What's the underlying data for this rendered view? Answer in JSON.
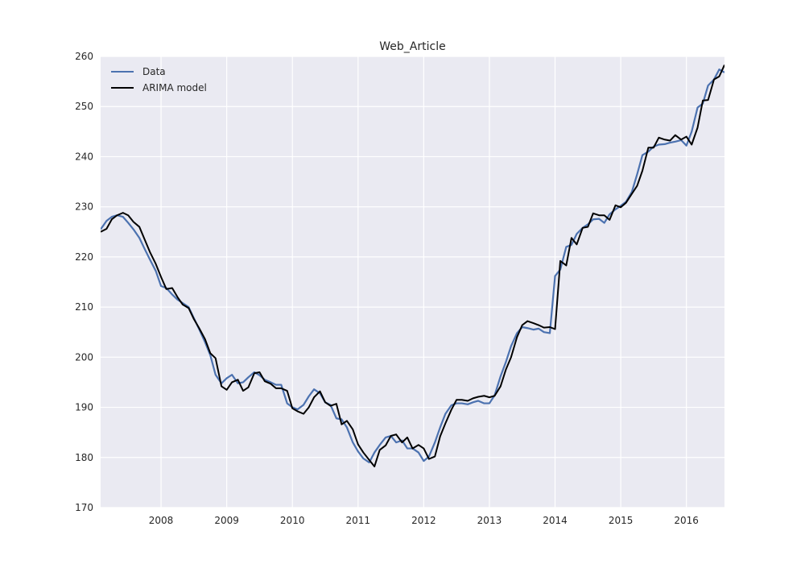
{
  "chart_data": {
    "type": "line",
    "title": "Web_Article",
    "xlabel": "",
    "ylabel": "",
    "xlim": [
      2007.08,
      2016.58
    ],
    "ylim": [
      170,
      260
    ],
    "x_tick_labels": [
      "2008",
      "2009",
      "2010",
      "2011",
      "2012",
      "2013",
      "2014",
      "2015",
      "2016"
    ],
    "y_tick_labels": [
      "170",
      "180",
      "190",
      "200",
      "210",
      "220",
      "230",
      "240",
      "250",
      "260"
    ],
    "grid": true,
    "legend_position": "top-left",
    "series": [
      {
        "name": "Data",
        "color": "#4c72b0",
        "points": [
          [
            2007.08,
            225.5
          ],
          [
            2007.17,
            227.2
          ],
          [
            2007.25,
            228.0
          ],
          [
            2007.33,
            228.3
          ],
          [
            2007.42,
            228.0
          ],
          [
            2007.5,
            226.8
          ],
          [
            2007.58,
            225.5
          ],
          [
            2007.67,
            223.8
          ],
          [
            2007.75,
            221.6
          ],
          [
            2007.83,
            219.5
          ],
          [
            2007.92,
            217.2
          ],
          [
            2008.0,
            214.2
          ],
          [
            2008.08,
            213.8
          ],
          [
            2008.17,
            212.5
          ],
          [
            2008.25,
            211.5
          ],
          [
            2008.33,
            210.8
          ],
          [
            2008.42,
            210.0
          ],
          [
            2008.5,
            207.8
          ],
          [
            2008.58,
            205.6
          ],
          [
            2008.67,
            203.0
          ],
          [
            2008.75,
            200.4
          ],
          [
            2008.83,
            196.5
          ],
          [
            2008.92,
            194.8
          ],
          [
            2009.0,
            195.8
          ],
          [
            2009.08,
            196.5
          ],
          [
            2009.17,
            194.8
          ],
          [
            2009.25,
            195.0
          ],
          [
            2009.33,
            196.0
          ],
          [
            2009.42,
            197.0
          ],
          [
            2009.5,
            196.4
          ],
          [
            2009.58,
            195.5
          ],
          [
            2009.67,
            195.0
          ],
          [
            2009.75,
            194.5
          ],
          [
            2009.83,
            194.5
          ],
          [
            2009.92,
            190.8
          ],
          [
            2010.0,
            190.0
          ],
          [
            2010.08,
            189.6
          ],
          [
            2010.17,
            190.5
          ],
          [
            2010.25,
            192.2
          ],
          [
            2010.33,
            193.6
          ],
          [
            2010.42,
            192.8
          ],
          [
            2010.5,
            191.0
          ],
          [
            2010.58,
            190.5
          ],
          [
            2010.67,
            187.8
          ],
          [
            2010.75,
            187.6
          ],
          [
            2010.83,
            186.0
          ],
          [
            2010.92,
            183.0
          ],
          [
            2011.0,
            181.2
          ],
          [
            2011.08,
            179.8
          ],
          [
            2011.17,
            179.0
          ],
          [
            2011.25,
            181.0
          ],
          [
            2011.33,
            182.5
          ],
          [
            2011.42,
            184.0
          ],
          [
            2011.5,
            184.3
          ],
          [
            2011.58,
            183.0
          ],
          [
            2011.67,
            183.4
          ],
          [
            2011.75,
            181.8
          ],
          [
            2011.83,
            181.8
          ],
          [
            2011.92,
            181.0
          ],
          [
            2012.0,
            179.3
          ],
          [
            2012.08,
            180.2
          ],
          [
            2012.17,
            183.0
          ],
          [
            2012.25,
            186.0
          ],
          [
            2012.33,
            188.7
          ],
          [
            2012.42,
            190.4
          ],
          [
            2012.5,
            190.8
          ],
          [
            2012.58,
            190.8
          ],
          [
            2012.67,
            190.6
          ],
          [
            2012.75,
            191.0
          ],
          [
            2012.83,
            191.3
          ],
          [
            2012.92,
            190.8
          ],
          [
            2013.0,
            190.8
          ],
          [
            2013.08,
            192.4
          ],
          [
            2013.17,
            196.2
          ],
          [
            2013.25,
            199.0
          ],
          [
            2013.33,
            202.2
          ],
          [
            2013.42,
            204.8
          ],
          [
            2013.5,
            206.0
          ],
          [
            2013.58,
            205.8
          ],
          [
            2013.67,
            205.5
          ],
          [
            2013.75,
            205.7
          ],
          [
            2013.83,
            205.0
          ],
          [
            2013.92,
            204.8
          ],
          [
            2014.0,
            216.2
          ],
          [
            2014.08,
            217.5
          ],
          [
            2014.17,
            222.0
          ],
          [
            2014.25,
            222.4
          ],
          [
            2014.33,
            224.6
          ],
          [
            2014.42,
            225.8
          ],
          [
            2014.5,
            226.5
          ],
          [
            2014.58,
            227.5
          ],
          [
            2014.67,
            227.6
          ],
          [
            2014.75,
            226.8
          ],
          [
            2014.83,
            228.5
          ],
          [
            2014.92,
            229.5
          ],
          [
            2015.0,
            230.2
          ],
          [
            2015.08,
            231.0
          ],
          [
            2015.17,
            233.0
          ],
          [
            2015.25,
            236.5
          ],
          [
            2015.33,
            240.3
          ],
          [
            2015.42,
            241.0
          ],
          [
            2015.5,
            242.0
          ],
          [
            2015.58,
            242.4
          ],
          [
            2015.67,
            242.5
          ],
          [
            2015.75,
            242.8
          ],
          [
            2015.83,
            243.0
          ],
          [
            2015.92,
            243.3
          ],
          [
            2016.0,
            242.2
          ],
          [
            2016.08,
            245.0
          ],
          [
            2016.17,
            249.8
          ],
          [
            2016.25,
            250.6
          ],
          [
            2016.33,
            254.2
          ],
          [
            2016.42,
            255.4
          ],
          [
            2016.5,
            257.4
          ],
          [
            2016.58,
            256.8
          ]
        ]
      },
      {
        "name": "ARIMA model",
        "color": "#000000",
        "points": [
          [
            2007.08,
            225.0
          ],
          [
            2007.17,
            225.6
          ],
          [
            2007.25,
            227.5
          ],
          [
            2007.33,
            228.3
          ],
          [
            2007.42,
            228.8
          ],
          [
            2007.5,
            228.3
          ],
          [
            2007.58,
            227.0
          ],
          [
            2007.67,
            226.0
          ],
          [
            2007.75,
            223.5
          ],
          [
            2007.83,
            221.0
          ],
          [
            2007.92,
            218.6
          ],
          [
            2008.0,
            216.0
          ],
          [
            2008.08,
            213.6
          ],
          [
            2008.17,
            213.8
          ],
          [
            2008.25,
            212.0
          ],
          [
            2008.33,
            210.5
          ],
          [
            2008.42,
            209.8
          ],
          [
            2008.5,
            207.6
          ],
          [
            2008.58,
            205.8
          ],
          [
            2008.67,
            203.6
          ],
          [
            2008.75,
            200.8
          ],
          [
            2008.83,
            199.8
          ],
          [
            2008.92,
            194.2
          ],
          [
            2009.0,
            193.5
          ],
          [
            2009.08,
            195.0
          ],
          [
            2009.17,
            195.5
          ],
          [
            2009.25,
            193.3
          ],
          [
            2009.33,
            194.0
          ],
          [
            2009.42,
            196.8
          ],
          [
            2009.5,
            197.0
          ],
          [
            2009.58,
            195.2
          ],
          [
            2009.67,
            194.7
          ],
          [
            2009.75,
            193.8
          ],
          [
            2009.83,
            193.8
          ],
          [
            2009.92,
            193.3
          ],
          [
            2010.0,
            189.8
          ],
          [
            2010.08,
            189.2
          ],
          [
            2010.17,
            188.7
          ],
          [
            2010.25,
            190.0
          ],
          [
            2010.33,
            192.0
          ],
          [
            2010.42,
            193.2
          ],
          [
            2010.5,
            191.0
          ],
          [
            2010.58,
            190.3
          ],
          [
            2010.67,
            190.7
          ],
          [
            2010.75,
            186.6
          ],
          [
            2010.83,
            187.3
          ],
          [
            2010.92,
            185.6
          ],
          [
            2011.0,
            182.6
          ],
          [
            2011.08,
            181.0
          ],
          [
            2011.17,
            179.5
          ],
          [
            2011.25,
            178.2
          ],
          [
            2011.33,
            181.5
          ],
          [
            2011.42,
            182.4
          ],
          [
            2011.5,
            184.3
          ],
          [
            2011.58,
            184.6
          ],
          [
            2011.67,
            183.0
          ],
          [
            2011.75,
            184.0
          ],
          [
            2011.83,
            181.8
          ],
          [
            2011.92,
            182.5
          ],
          [
            2012.0,
            181.8
          ],
          [
            2012.08,
            179.7
          ],
          [
            2012.17,
            180.2
          ],
          [
            2012.25,
            184.2
          ],
          [
            2012.33,
            186.8
          ],
          [
            2012.42,
            189.5
          ],
          [
            2012.5,
            191.5
          ],
          [
            2012.58,
            191.5
          ],
          [
            2012.67,
            191.3
          ],
          [
            2012.75,
            191.8
          ],
          [
            2012.83,
            192.1
          ],
          [
            2012.92,
            192.3
          ],
          [
            2013.0,
            192.0
          ],
          [
            2013.08,
            192.3
          ],
          [
            2013.17,
            194.2
          ],
          [
            2013.25,
            197.5
          ],
          [
            2013.33,
            200.0
          ],
          [
            2013.42,
            204.0
          ],
          [
            2013.5,
            206.4
          ],
          [
            2013.58,
            207.2
          ],
          [
            2013.67,
            206.8
          ],
          [
            2013.75,
            206.4
          ],
          [
            2013.83,
            205.9
          ],
          [
            2013.92,
            206.0
          ],
          [
            2014.0,
            205.6
          ],
          [
            2014.08,
            219.2
          ],
          [
            2014.17,
            218.3
          ],
          [
            2014.25,
            223.8
          ],
          [
            2014.33,
            222.5
          ],
          [
            2014.42,
            225.8
          ],
          [
            2014.5,
            226.0
          ],
          [
            2014.58,
            228.7
          ],
          [
            2014.67,
            228.3
          ],
          [
            2014.75,
            228.3
          ],
          [
            2014.83,
            227.4
          ],
          [
            2014.92,
            230.3
          ],
          [
            2015.0,
            229.9
          ],
          [
            2015.08,
            230.8
          ],
          [
            2015.17,
            232.6
          ],
          [
            2015.25,
            234.2
          ],
          [
            2015.33,
            237.2
          ],
          [
            2015.42,
            241.8
          ],
          [
            2015.5,
            241.8
          ],
          [
            2015.58,
            243.8
          ],
          [
            2015.67,
            243.4
          ],
          [
            2015.75,
            243.2
          ],
          [
            2015.83,
            244.3
          ],
          [
            2015.92,
            243.4
          ],
          [
            2016.0,
            244.0
          ],
          [
            2016.08,
            242.4
          ],
          [
            2016.17,
            245.8
          ],
          [
            2016.25,
            251.2
          ],
          [
            2016.33,
            251.3
          ],
          [
            2016.42,
            255.4
          ],
          [
            2016.5,
            256.0
          ],
          [
            2016.58,
            258.3
          ]
        ]
      }
    ]
  }
}
